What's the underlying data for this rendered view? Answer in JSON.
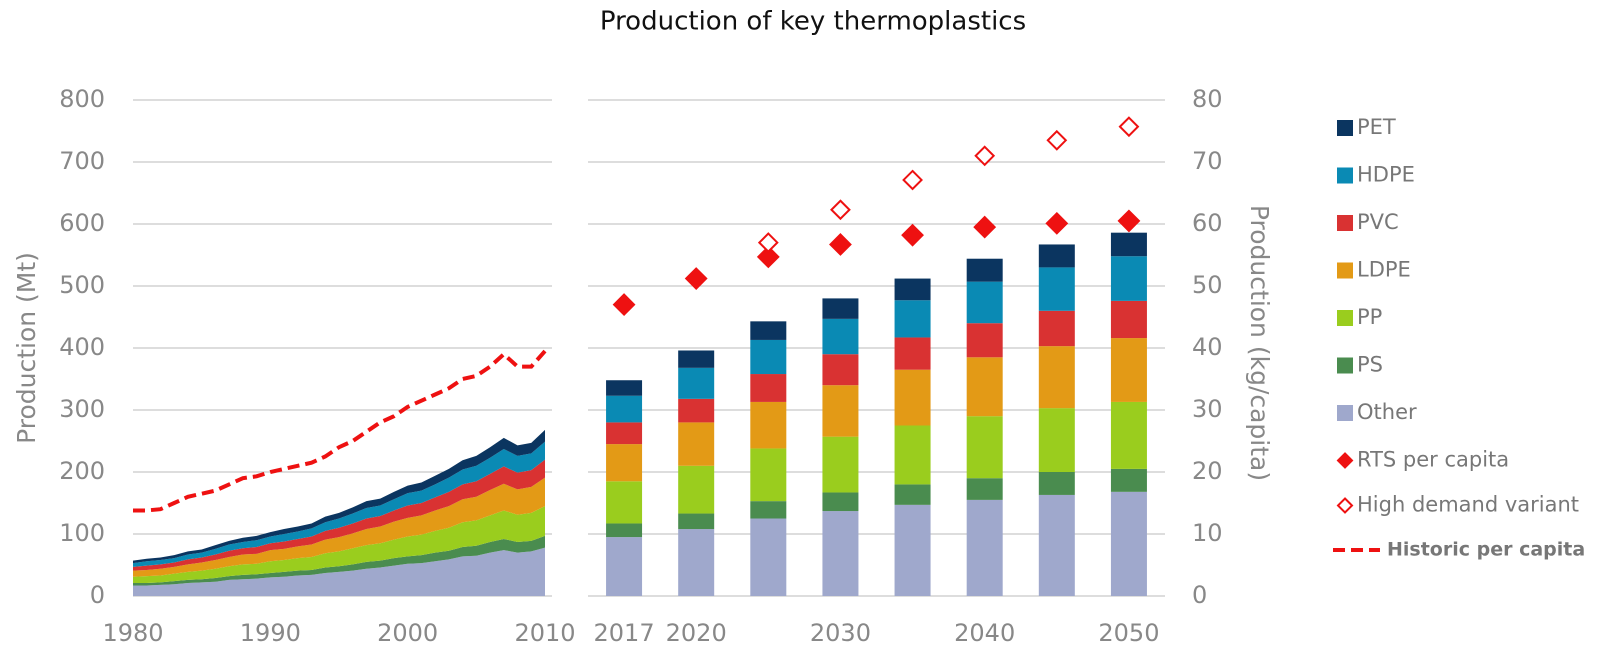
{
  "chart_data": {
    "type": "bar",
    "title": "Production of key thermoplastics",
    "ylabel": "Production (Mt)",
    "y2label": "Production (kg/capita)",
    "ylim": [
      0,
      800
    ],
    "yticks": [
      0,
      100,
      200,
      300,
      400,
      500,
      600,
      700,
      800
    ],
    "y2lim": [
      0,
      80
    ],
    "y2ticks": [
      0,
      10,
      20,
      30,
      40,
      50,
      60,
      70,
      80
    ],
    "grid": true,
    "legend": "right",
    "categories": [
      "2017",
      "2020",
      null,
      "2030",
      null,
      "2040",
      null,
      "2050"
    ],
    "series": [
      {
        "name": "Other",
        "color": "#9fa8cc",
        "values": [
          95,
          108,
          125,
          137,
          147,
          155,
          163,
          168
        ]
      },
      {
        "name": "PS",
        "color": "#4a8c4f",
        "values": [
          22,
          25,
          28,
          30,
          33,
          35,
          37,
          37
        ]
      },
      {
        "name": "PP",
        "color": "#9acd1e",
        "values": [
          68,
          77,
          85,
          90,
          95,
          100,
          103,
          108
        ]
      },
      {
        "name": "LDPE",
        "color": "#e39a16",
        "values": [
          60,
          70,
          75,
          83,
          90,
          95,
          100,
          103
        ]
      },
      {
        "name": "PVC",
        "color": "#d93232",
        "values": [
          35,
          38,
          45,
          50,
          52,
          55,
          57,
          60
        ]
      },
      {
        "name": "HDPE",
        "color": "#0a8ab4",
        "values": [
          43,
          50,
          55,
          57,
          60,
          67,
          70,
          72
        ]
      },
      {
        "name": "PET",
        "color": "#0b3560",
        "values": [
          25,
          28,
          30,
          33,
          35,
          37,
          37,
          38
        ]
      },
      {
        "name": "RTS per capita",
        "type": "scatter",
        "axis": "y2",
        "color": "#ee1111",
        "filled": true,
        "values": [
          47,
          51.2,
          54.7,
          56.7,
          58.2,
          59.5,
          60.1,
          60.5
        ]
      },
      {
        "name": "High demand variant",
        "type": "scatter",
        "axis": "y2",
        "color": "#ee1111",
        "filled": false,
        "values": [
          null,
          null,
          57,
          62.3,
          67.1,
          71,
          73.5,
          75.7
        ]
      }
    ],
    "history": {
      "type": "area",
      "xlim": [
        1980,
        2010
      ],
      "xticks": [
        1980,
        1990,
        2000,
        2010
      ],
      "x": [
        1980,
        1981,
        1982,
        1983,
        1984,
        1985,
        1986,
        1987,
        1988,
        1989,
        1990,
        1991,
        1992,
        1993,
        1994,
        1995,
        1996,
        1997,
        1998,
        1999,
        2000,
        2001,
        2002,
        2003,
        2004,
        2005,
        2006,
        2007,
        2008,
        2009,
        2010
      ],
      "series": [
        {
          "values": [
            17,
            17,
            18,
            19,
            21,
            22,
            23,
            26,
            27,
            28,
            30,
            31,
            33,
            34,
            37,
            39,
            41,
            44,
            46,
            49,
            52,
            53,
            56,
            59,
            64,
            65,
            70,
            74,
            70,
            72,
            78
          ]
        },
        {
          "values": [
            4,
            4,
            4,
            5,
            5,
            5,
            6,
            6,
            7,
            7,
            7,
            8,
            8,
            8,
            9,
            9,
            10,
            11,
            11,
            12,
            12,
            13,
            14,
            14,
            15,
            16,
            17,
            18,
            17,
            17,
            19
          ]
        },
        {
          "values": [
            10,
            11,
            11,
            12,
            13,
            14,
            15,
            16,
            17,
            17,
            19,
            19,
            20,
            21,
            23,
            24,
            26,
            27,
            28,
            30,
            32,
            33,
            35,
            37,
            40,
            41,
            43,
            46,
            44,
            45,
            48
          ]
        },
        {
          "values": [
            10,
            10,
            11,
            11,
            12,
            13,
            14,
            15,
            16,
            16,
            18,
            18,
            19,
            20,
            22,
            23,
            24,
            26,
            27,
            29,
            30,
            31,
            33,
            35,
            37,
            38,
            41,
            43,
            41,
            42,
            46
          ]
        },
        {
          "values": [
            6,
            7,
            7,
            7,
            8,
            8,
            9,
            10,
            10,
            11,
            11,
            12,
            12,
            13,
            14,
            15,
            16,
            17,
            17,
            18,
            20,
            20,
            21,
            23,
            24,
            25,
            26,
            28,
            27,
            27,
            29
          ]
        },
        {
          "values": [
            6,
            7,
            7,
            7,
            8,
            8,
            9,
            10,
            10,
            11,
            11,
            12,
            12,
            13,
            14,
            15,
            16,
            17,
            17,
            18,
            20,
            20,
            21,
            23,
            24,
            25,
            26,
            28,
            27,
            27,
            29
          ]
        },
        {
          "values": [
            4,
            4,
            4,
            5,
            5,
            5,
            6,
            6,
            7,
            7,
            7,
            8,
            8,
            8,
            9,
            9,
            10,
            11,
            11,
            12,
            12,
            13,
            14,
            14,
            15,
            16,
            17,
            18,
            17,
            17,
            19
          ]
        }
      ],
      "per_capita": {
        "name": "Historic per capita",
        "axis": "y2",
        "color": "#ee1111",
        "values": [
          13.8,
          13.8,
          14,
          15,
          16,
          16.5,
          17,
          18,
          19,
          19.3,
          20,
          20.5,
          21,
          21.5,
          22.5,
          24,
          25,
          26.5,
          28,
          29,
          30.5,
          31.5,
          32.5,
          33.5,
          35,
          35.5,
          37,
          39,
          37,
          37,
          39.5
        ]
      }
    }
  }
}
